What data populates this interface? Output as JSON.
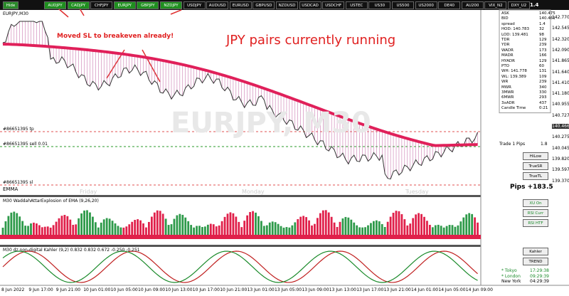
{
  "toolbar": {
    "hide": "Hide",
    "symbols": [
      {
        "label": "AUDJPY",
        "active": true
      },
      {
        "label": "CADJPY",
        "active": true
      },
      {
        "label": "CHFJPY",
        "active": false
      },
      {
        "label": "EURJPY",
        "active": true
      },
      {
        "label": "GBPJPY",
        "active": true
      },
      {
        "label": "NZDJPY",
        "active": true
      },
      {
        "label": "USDJPY",
        "active": false
      },
      {
        "label": "AUDUSD",
        "active": false
      },
      {
        "label": "EURUSD",
        "active": false
      },
      {
        "label": "GBPUSD",
        "active": false
      },
      {
        "label": "NZDUSD",
        "active": false
      },
      {
        "label": "USDCAD",
        "active": false
      },
      {
        "label": "USDCHF",
        "active": false
      },
      {
        "label": "USTEC",
        "active": false
      },
      {
        "label": "US30",
        "active": false
      },
      {
        "label": "US500",
        "active": false
      },
      {
        "label": "US2000",
        "active": false
      },
      {
        "label": "DE40",
        "active": false
      },
      {
        "label": "AU200",
        "active": false
      },
      {
        "label": "VIX_N2",
        "active": false
      },
      {
        "label": "DXY_U2",
        "active": false
      }
    ],
    "spread_top": "1.4"
  },
  "chart": {
    "title": "EURJPY,M30",
    "watermark": "EURJPY, M30",
    "annotation": "Moved SL to breakeven already!",
    "headline": "JPY pairs currently running",
    "order_lines": {
      "tp": "#86651395 tp",
      "sell": "#86651395 sell 0.01",
      "sl": "#86651395 sl"
    },
    "emma": "EMMA",
    "trade_label": "Trade 1 Pips",
    "trade_value": "1.8",
    "buttons": [
      "HiLow",
      "TrueSR",
      "TrueTL"
    ],
    "pips": "Pips +183.5",
    "days": [
      "Friday",
      "Monday",
      "Tuesday"
    ],
    "price_axis": [
      "142.770",
      "142.545",
      "142.320",
      "142.090",
      "141.865",
      "141.640",
      "141.410",
      "141.180",
      "140.955",
      "140.727",
      "140.466",
      "140.275",
      "140.045",
      "139.820",
      "139.597",
      "139.370"
    ]
  },
  "panel": {
    "rows": [
      [
        "ASK",
        "140.475"
      ],
      [
        "BID",
        "140.461"
      ],
      [
        "spread",
        "1.4"
      ],
      [
        "HOD: 140.783",
        "32"
      ],
      [
        "LOD: 139.481",
        "98"
      ],
      [
        "TDR",
        "129"
      ],
      [
        "YDR",
        "239"
      ],
      [
        "WADR",
        "173"
      ],
      [
        "MADR",
        "166"
      ],
      [
        "HYADR",
        "129"
      ],
      [
        "PTO",
        "60"
      ],
      [
        "WH: 141.778",
        "131"
      ],
      [
        "WL: 139.389",
        "109"
      ],
      [
        "WR",
        "239"
      ],
      [
        "MWR",
        "340"
      ],
      [
        "3MWR",
        "330"
      ],
      [
        "6MWR",
        "293"
      ],
      [
        "3xADR",
        "437"
      ],
      [
        "Candle Time",
        "0:21"
      ]
    ]
  },
  "sub1": {
    "title": "M30 WaddahAttarExplosion of EMA (9,26,20)",
    "buttons": [
      "XU On",
      "RSI Curr",
      "RSI HTF"
    ]
  },
  "sub2": {
    "title": "M30  dz non-digital Kahler (9,2) 0.832 0.832 0.672 -0.250 -0.251",
    "buttons": [
      "Kahler",
      "TREND"
    ],
    "clocks": [
      [
        "* Tokyo",
        "17:29:38"
      ],
      [
        "* London",
        "09:29:39"
      ],
      [
        "New York",
        "04:29:39"
      ]
    ]
  },
  "time_axis": [
    "8 Jun 2022",
    "9 Jun 17:00",
    "9 Jun 21:00",
    "10 Jun 01:00",
    "10 Jun 05:00",
    "10 Jun 09:00",
    "10 Jun 13:00",
    "10 Jun 17:00",
    "10 Jun 21:00",
    "13 Jun 01:00",
    "13 Jun 05:00",
    "13 Jun 09:00",
    "13 Jun 13:00",
    "13 Jun 17:00",
    "13 Jun 21:00",
    "14 Jun 01:00",
    "14 Jun 05:00",
    "14 Jun 09:00"
  ]
}
